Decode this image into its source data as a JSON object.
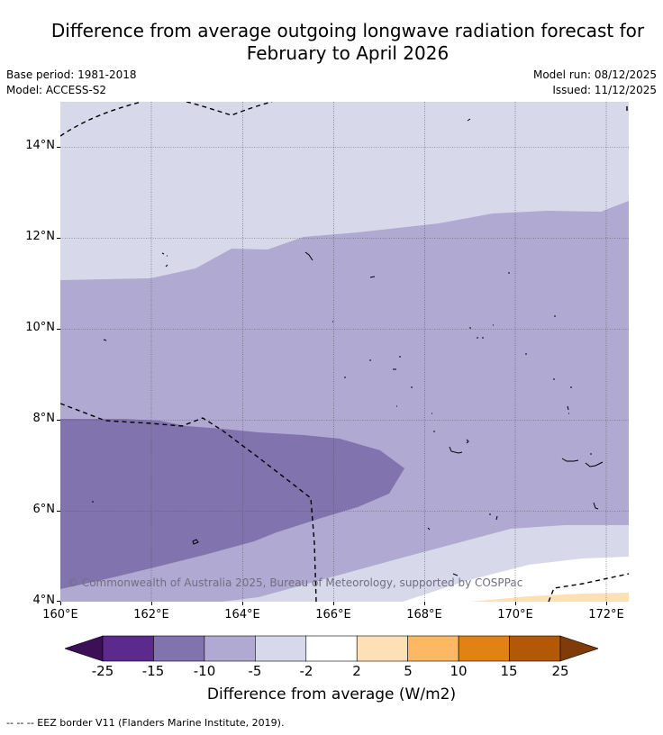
{
  "title": {
    "line1": "Difference from average outgoing longwave radiation forecast for",
    "line2": "February to April 2026"
  },
  "meta": {
    "base_period": "Base period: 1981-2018",
    "model": "Model: ACCESS-S2",
    "model_run": "Model run: 08/12/2025",
    "issued": "Issued: 11/12/2025"
  },
  "map": {
    "lat_labels": [
      "14°N",
      "12°N",
      "10°N",
      "8°N",
      "6°N",
      "4°N"
    ],
    "lon_labels": [
      "160°E",
      "162°E",
      "164°E",
      "166°E",
      "168°E",
      "170°E",
      "172°E"
    ],
    "copyright": "© Commonwealth of Australia 2025, Bureau of Meteorology, supported by COSPPac"
  },
  "legend": {
    "tick_labels": [
      "-25",
      "-15",
      "-10",
      "-5",
      "-2",
      "2",
      "5",
      "10",
      "15",
      "25"
    ],
    "colors": [
      "#3c0f57",
      "#5c2a8c",
      "#8073ae",
      "#b0a9d1",
      "#d8d8eb",
      "#ffffff",
      "#fee0b6",
      "#fdb863",
      "#e08214",
      "#b35806",
      "#7f3b08"
    ],
    "label": "Difference from average (W/m2)"
  },
  "footnote": "--  --  -- EEZ border V11 (Flanders Marine Institute, 2019)."
}
